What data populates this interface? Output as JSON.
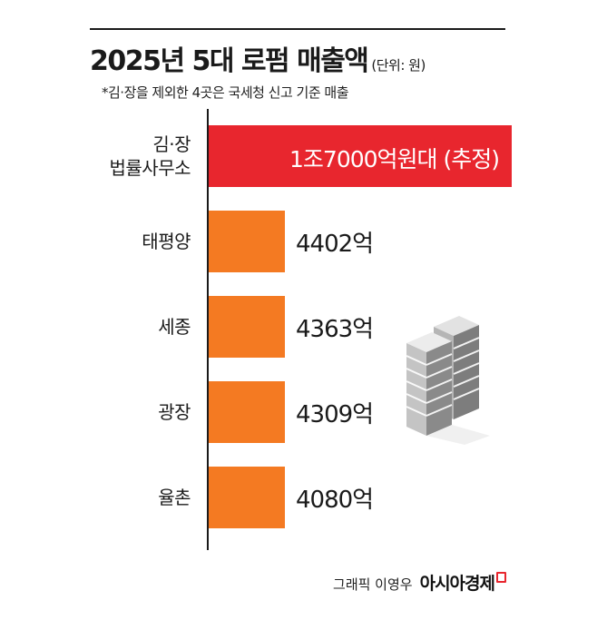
{
  "header": {
    "title": "2025년 5대 로펌 매출액",
    "unit": "(단위: 원)",
    "note": "*김·장을 제외한 4곳은 국세청 신고 기준 매출"
  },
  "chart_data": {
    "type": "bar",
    "orientation": "horizontal",
    "title": "2025년 5대 로펌 매출액",
    "unit_label": "(단위: 원)",
    "categories": [
      "김·장 법률사무소",
      "태평양",
      "세종",
      "광장",
      "율촌"
    ],
    "category_lines": [
      [
        "김·장",
        "법률사무소"
      ],
      [
        "태평양"
      ],
      [
        "세종"
      ],
      [
        "광장"
      ],
      [
        "율촌"
      ]
    ],
    "values": [
      17000,
      4402,
      4363,
      4309,
      4080
    ],
    "value_unit": "억원",
    "data_labels": [
      "1조7000억원대 (추정)",
      "4402억",
      "4363억",
      "4309억",
      "4080억"
    ],
    "colors": {
      "highlight": "#e8262e",
      "default": "#f47a22"
    },
    "grid": false,
    "legend": "none"
  },
  "footer": {
    "credit": "그래픽 이영우",
    "brand": "아시아경제"
  },
  "decoration": {
    "icon": "office-buildings-icon"
  }
}
